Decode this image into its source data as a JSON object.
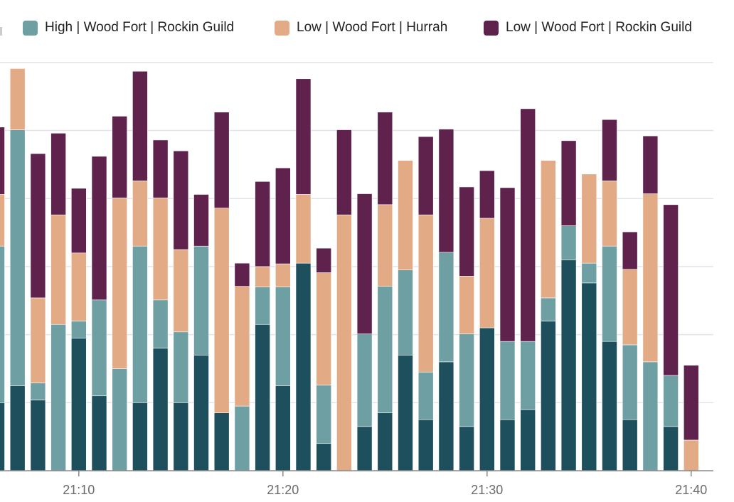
{
  "chart_data": {
    "type": "bar",
    "stacked": true,
    "title": "",
    "xlabel": "",
    "ylabel": "",
    "ylim": [
      0,
      60
    ],
    "grid": true,
    "legend_position": "top",
    "categories": [
      "21:06",
      "21:07",
      "21:08",
      "21:09",
      "21:10",
      "21:11",
      "21:12",
      "21:13",
      "21:14",
      "21:15",
      "21:16",
      "21:17",
      "21:18",
      "21:19",
      "21:20",
      "21:21",
      "21:22",
      "21:23",
      "21:24",
      "21:25",
      "21:26",
      "21:27",
      "21:28",
      "21:29",
      "21:30",
      "21:31",
      "21:32",
      "21:33",
      "21:34",
      "21:35",
      "21:36",
      "21:37",
      "21:38",
      "21:39",
      "21:40"
    ],
    "x_tick_labels": [
      "21:10",
      "21:20",
      "21:30",
      "21:40"
    ],
    "series": [
      {
        "color": "#1e4f5c",
        "values": [
          10.0,
          12.5,
          10.4,
          0,
          19.5,
          11.0,
          0,
          10.0,
          18.0,
          10.0,
          17.0,
          8.5,
          0,
          21.5,
          12.5,
          30.5,
          4.0,
          0,
          6.5,
          8.5,
          17.0,
          7.5,
          16.0,
          6.5,
          21.0,
          7.5,
          9.0,
          22.0,
          31.0,
          27.6,
          19.0,
          7.5,
          0,
          6.5,
          0
        ]
      },
      {
        "name": "High | Wood Fort | Rockin Guild",
        "color": "#6e9fa3",
        "values": [
          23.0,
          37.6,
          2.5,
          21.5,
          2.5,
          14.1,
          15.0,
          23.0,
          7.1,
          10.4,
          16.0,
          0,
          9.5,
          5.5,
          14.5,
          0,
          8.6,
          0,
          13.6,
          18.6,
          12.5,
          7.0,
          16.1,
          13.6,
          0,
          11.5,
          10.0,
          3.4,
          5.0,
          2.9,
          14.0,
          11.0,
          16.0,
          7.5,
          0
        ]
      },
      {
        "name": "Low | Wood Fort | Hurrah",
        "color": "#e2aa85",
        "values": [
          7.6,
          9.0,
          12.5,
          16.1,
          10.0,
          0,
          25.1,
          9.6,
          15.0,
          12.1,
          0,
          30.1,
          17.6,
          3.0,
          3.4,
          10.1,
          16.5,
          37.6,
          0,
          12.0,
          16.1,
          23.1,
          0,
          8.5,
          16.1,
          0,
          0,
          20.2,
          0,
          13.1,
          9.6,
          11.1,
          24.7,
          0,
          4.5
        ]
      },
      {
        "name": "Low | Wood Fort | Rockin Guild",
        "color": "#5e224d",
        "values": [
          9.9,
          0,
          21.2,
          12.0,
          9.5,
          21.1,
          12.0,
          16.1,
          8.5,
          14.5,
          7.6,
          14.1,
          3.4,
          12.5,
          14.1,
          17.0,
          3.6,
          12.5,
          20.6,
          13.6,
          0,
          11.5,
          18.1,
          13.1,
          7.0,
          22.6,
          34.2,
          0,
          12.5,
          0,
          9.0,
          5.5,
          8.5,
          25.1,
          11.0
        ]
      }
    ]
  }
}
